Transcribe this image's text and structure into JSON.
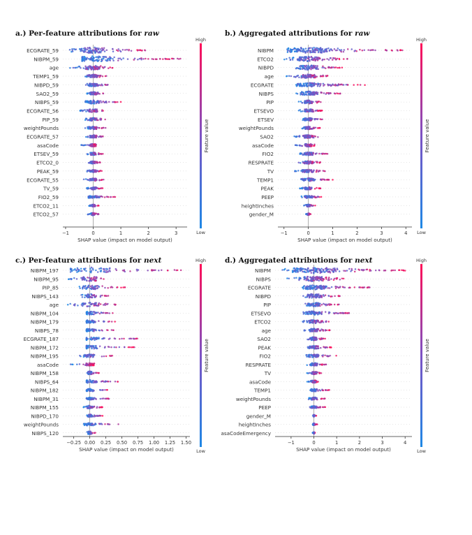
{
  "titles": {
    "a_prefix": "a.) Per-feature attributions for ",
    "a_em": "raw",
    "b_prefix": "b.) Aggregated attributions for ",
    "b_em": "raw",
    "c_prefix": "c.) Per-feature attributions for ",
    "c_em": "next",
    "d_prefix": "d.) Aggregated attributions for ",
    "d_em": "next"
  },
  "colors": {
    "low": "#1e88e5",
    "high": "#ff0d57",
    "zero_line": "#999999"
  },
  "chart_data": [
    {
      "type": "beeswarm",
      "id": "a",
      "xlabel": "SHAP value (impact on model output)",
      "colorbar": {
        "label": "Feature value",
        "high": "High",
        "low": "Low"
      },
      "xlim": [
        -1.1,
        3.4
      ],
      "xticks": [
        -1,
        0,
        1,
        2,
        3
      ],
      "xtick_labels": [
        "−1",
        "0",
        "1",
        "2",
        "3"
      ],
      "features": [
        {
          "name": "ECGRATE_59",
          "min": -0.9,
          "max": 1.9,
          "width": 8.5
        },
        {
          "name": "NIBPM_59",
          "min": -0.4,
          "max": 3.2,
          "width": 8.0
        },
        {
          "name": "age",
          "min": -0.9,
          "max": 0.7,
          "width": 6.5
        },
        {
          "name": "TEMP1_59",
          "min": -0.4,
          "max": 0.5,
          "width": 5.0
        },
        {
          "name": "NIBPD_59",
          "min": -0.3,
          "max": 0.65,
          "width": 5.0
        },
        {
          "name": "SAO2_59",
          "min": -0.25,
          "max": 0.4,
          "width": 5.0
        },
        {
          "name": "NIBPS_59",
          "min": -0.3,
          "max": 1.0,
          "width": 5.0
        },
        {
          "name": "ECGRATE_56",
          "min": -0.5,
          "max": 0.4,
          "width": 5.0
        },
        {
          "name": "PIP_59",
          "min": -0.3,
          "max": 0.5,
          "width": 5.0
        },
        {
          "name": "weightPounds",
          "min": -0.3,
          "max": 0.45,
          "width": 4.5
        },
        {
          "name": "ECGRATE_57",
          "min": -0.3,
          "max": 0.4,
          "width": 4.5
        },
        {
          "name": "asaCode",
          "min": -0.45,
          "max": 0.15,
          "width": 4.5
        },
        {
          "name": "ETSEV_59",
          "min": -0.25,
          "max": 0.35,
          "width": 4.5
        },
        {
          "name": "ETCO2_0",
          "min": -0.2,
          "max": 0.25,
          "width": 4.0
        },
        {
          "name": "PEAK_59",
          "min": -0.25,
          "max": 0.35,
          "width": 4.0
        },
        {
          "name": "ECGRATE_55",
          "min": -0.35,
          "max": 0.4,
          "width": 4.0
        },
        {
          "name": "TV_59",
          "min": -0.25,
          "max": 0.35,
          "width": 4.0
        },
        {
          "name": "FIO2_59",
          "min": -0.2,
          "max": 0.8,
          "width": 4.0
        },
        {
          "name": "ETCO2_11",
          "min": -0.15,
          "max": 0.2,
          "width": 3.5
        },
        {
          "name": "ETCO2_57",
          "min": -0.2,
          "max": 0.2,
          "width": 4.0
        }
      ]
    },
    {
      "type": "beeswarm",
      "id": "b",
      "xlabel": "SHAP value (impact on model output)",
      "colorbar": {
        "label": "Feature value",
        "high": "High",
        "low": "Low"
      },
      "xlim": [
        -1.25,
        4.25
      ],
      "xticks": [
        -1,
        0,
        1,
        2,
        3,
        4
      ],
      "xtick_labels": [
        "−1",
        "0",
        "1",
        "2",
        "3",
        "4"
      ],
      "features": [
        {
          "name": "NIBPM",
          "min": -1.1,
          "max": 3.9,
          "width": 8.5
        },
        {
          "name": "ETCO2",
          "min": -1.1,
          "max": 1.6,
          "width": 7.0
        },
        {
          "name": "NIBPD",
          "min": -0.6,
          "max": 1.4,
          "width": 7.0
        },
        {
          "name": "age",
          "min": -0.9,
          "max": 0.8,
          "width": 6.0
        },
        {
          "name": "ECGRATE",
          "min": -0.5,
          "max": 2.4,
          "width": 6.0
        },
        {
          "name": "NIBPS",
          "min": -0.5,
          "max": 1.5,
          "width": 6.0
        },
        {
          "name": "PIP",
          "min": -0.4,
          "max": 0.6,
          "width": 5.0
        },
        {
          "name": "ETSEVO",
          "min": -0.4,
          "max": 0.6,
          "width": 5.0
        },
        {
          "name": "ETSEV",
          "min": -0.3,
          "max": 0.6,
          "width": 4.5
        },
        {
          "name": "weightPounds",
          "min": -0.3,
          "max": 0.5,
          "width": 4.5
        },
        {
          "name": "SAO2",
          "min": -0.6,
          "max": 0.5,
          "width": 5.0
        },
        {
          "name": "asaCode",
          "min": -0.55,
          "max": 0.3,
          "width": 4.5
        },
        {
          "name": "FIO2",
          "min": -0.4,
          "max": 0.8,
          "width": 4.5
        },
        {
          "name": "RESPRATE",
          "min": -0.5,
          "max": 0.5,
          "width": 4.5
        },
        {
          "name": "TV",
          "min": -0.6,
          "max": 0.7,
          "width": 4.5
        },
        {
          "name": "TEMP1",
          "min": -0.4,
          "max": 1.0,
          "width": 4.5
        },
        {
          "name": "PEAK",
          "min": -0.4,
          "max": 0.5,
          "width": 4.0
        },
        {
          "name": "PEEP",
          "min": -0.3,
          "max": 0.6,
          "width": 4.0
        },
        {
          "name": "heightInches",
          "min": -0.2,
          "max": 0.3,
          "width": 3.5
        },
        {
          "name": "gender_M",
          "min": -0.1,
          "max": 0.1,
          "width": 3.0
        }
      ]
    },
    {
      "type": "beeswarm",
      "id": "c",
      "xlabel": "SHAP value (impact on model output)",
      "colorbar": {
        "label": "Feature value",
        "high": "High",
        "low": "Low"
      },
      "xlim": [
        -0.42,
        1.56
      ],
      "xticks": [
        -0.25,
        0.0,
        0.25,
        0.5,
        0.75,
        1.0,
        1.25,
        1.5
      ],
      "xtick_labels": [
        "−0.25",
        "0.00",
        "0.25",
        "0.50",
        "0.75",
        "1.00",
        "1.25",
        "1.50"
      ],
      "features": [
        {
          "name": "NIBPM_197",
          "min": -0.3,
          "max": 1.5,
          "width": 8.5
        },
        {
          "name": "NIBPM_95",
          "min": -0.35,
          "max": 0.3,
          "width": 7.5
        },
        {
          "name": "PIP_85",
          "min": -0.2,
          "max": 0.55,
          "width": 6.5
        },
        {
          "name": "NIBPS_143",
          "min": -0.15,
          "max": 0.3,
          "width": 6.0
        },
        {
          "name": "age",
          "min": -0.35,
          "max": 0.45,
          "width": 6.0
        },
        {
          "name": "NIBPM_104",
          "min": -0.05,
          "max": 0.4,
          "width": 5.0
        },
        {
          "name": "NIBPM_179",
          "min": -0.05,
          "max": 0.45,
          "width": 4.5
        },
        {
          "name": "NIBPS_78",
          "min": -0.05,
          "max": 0.4,
          "width": 4.5
        },
        {
          "name": "ECGRATE_187",
          "min": -0.05,
          "max": 0.8,
          "width": 4.5
        },
        {
          "name": "NIBPM_172",
          "min": -0.05,
          "max": 0.7,
          "width": 5.5
        },
        {
          "name": "NIBPM_195",
          "min": -0.2,
          "max": 0.35,
          "width": 4.5
        },
        {
          "name": "asaCode",
          "min": -0.3,
          "max": 0.1,
          "width": 4.0
        },
        {
          "name": "NIBPM_158",
          "min": -0.05,
          "max": 0.15,
          "width": 5.0
        },
        {
          "name": "NIBPS_64",
          "min": -0.05,
          "max": 0.45,
          "width": 5.0
        },
        {
          "name": "NIBPM_182",
          "min": -0.05,
          "max": 0.3,
          "width": 4.5
        },
        {
          "name": "NIBPM_31",
          "min": -0.05,
          "max": 0.3,
          "width": 3.5
        },
        {
          "name": "NIBPM_155",
          "min": -0.1,
          "max": 0.2,
          "width": 5.0
        },
        {
          "name": "NIBPD_170",
          "min": -0.05,
          "max": 0.2,
          "width": 4.5
        },
        {
          "name": "weightPounds",
          "min": -0.1,
          "max": 0.45,
          "width": 4.0
        },
        {
          "name": "NIBPS_120",
          "min": -0.05,
          "max": 0.1,
          "width": 5.0
        }
      ]
    },
    {
      "type": "beeswarm",
      "id": "d",
      "xlabel": "SHAP value (impact on model output)",
      "colorbar": {
        "label": "Feature value",
        "high": "High",
        "low": "Low"
      },
      "xlim": [
        -1.7,
        4.3
      ],
      "xticks": [
        -1,
        0,
        1,
        2,
        3,
        4
      ],
      "xtick_labels": [
        "−1",
        "0",
        "1",
        "2",
        "3",
        "4"
      ],
      "features": [
        {
          "name": "NIBPM",
          "min": -1.4,
          "max": 4.0,
          "width": 8.5
        },
        {
          "name": "NIBPS",
          "min": -1.2,
          "max": 1.4,
          "width": 7.5
        },
        {
          "name": "ECGRATE",
          "min": -0.5,
          "max": 2.5,
          "width": 6.5
        },
        {
          "name": "NIBPD",
          "min": -0.6,
          "max": 1.2,
          "width": 6.0
        },
        {
          "name": "PIP",
          "min": -0.5,
          "max": 1.1,
          "width": 5.5
        },
        {
          "name": "ETSEVO",
          "min": -0.5,
          "max": 1.6,
          "width": 5.5
        },
        {
          "name": "ETCO2",
          "min": -0.5,
          "max": 0.8,
          "width": 5.0
        },
        {
          "name": "age",
          "min": -0.5,
          "max": 0.7,
          "width": 5.0
        },
        {
          "name": "SAO2",
          "min": -0.3,
          "max": 0.5,
          "width": 5.0
        },
        {
          "name": "PEAK",
          "min": -0.4,
          "max": 0.8,
          "width": 4.5
        },
        {
          "name": "FIO2",
          "min": -0.4,
          "max": 1.0,
          "width": 4.5
        },
        {
          "name": "RESPRATE",
          "min": -0.3,
          "max": 0.6,
          "width": 4.5
        },
        {
          "name": "TV",
          "min": -0.3,
          "max": 0.4,
          "width": 4.0
        },
        {
          "name": "asaCode",
          "min": -0.3,
          "max": 0.2,
          "width": 4.0
        },
        {
          "name": "TEMP1",
          "min": -0.2,
          "max": 0.7,
          "width": 4.0
        },
        {
          "name": "weightPounds",
          "min": -0.3,
          "max": 0.5,
          "width": 4.0
        },
        {
          "name": "PEEP",
          "min": -0.2,
          "max": 0.5,
          "width": 3.5
        },
        {
          "name": "gender_M",
          "min": -0.05,
          "max": 0.1,
          "width": 3.0
        },
        {
          "name": "heightInches",
          "min": -0.05,
          "max": 0.15,
          "width": 3.0
        },
        {
          "name": "asaCodeEmergency",
          "min": -0.05,
          "max": 0.05,
          "width": 3.0
        }
      ]
    }
  ]
}
